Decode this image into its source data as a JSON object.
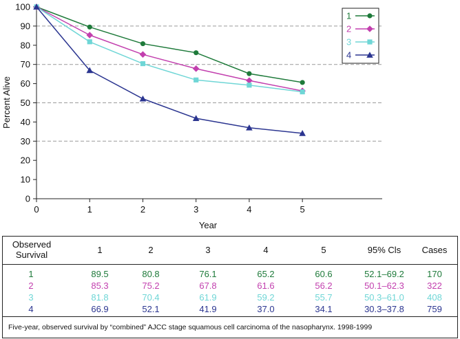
{
  "chart_data": {
    "type": "line",
    "title": "",
    "xlabel": "Year",
    "ylabel": "Percent Alive",
    "xlim": [
      0,
      6.5
    ],
    "ylim": [
      0,
      100
    ],
    "x_ticks": [
      "0",
      "1",
      "2",
      "3",
      "4",
      "5"
    ],
    "y_ticks": [
      "0",
      "10",
      "20",
      "30",
      "40",
      "50",
      "60",
      "70",
      "80",
      "90",
      "100"
    ],
    "gridlines": [
      30,
      50,
      70,
      90
    ],
    "series": [
      {
        "name": "1",
        "color": "#1e7a3a",
        "marker": "circle",
        "x": [
          0,
          1,
          2,
          3,
          4,
          5
        ],
        "values": [
          100,
          89.5,
          80.8,
          76.1,
          65.2,
          60.6
        ]
      },
      {
        "name": "2",
        "color": "#c23fae",
        "marker": "diamond",
        "x": [
          0,
          1,
          2,
          3,
          4,
          5
        ],
        "values": [
          100,
          85.3,
          75.2,
          67.8,
          61.6,
          56.2
        ]
      },
      {
        "name": "3",
        "color": "#6fd6d6",
        "marker": "square",
        "x": [
          0,
          1,
          2,
          3,
          4,
          5
        ],
        "values": [
          100,
          81.8,
          70.4,
          61.9,
          59.2,
          55.7
        ]
      },
      {
        "name": "4",
        "color": "#2b3590",
        "marker": "triangle",
        "x": [
          0,
          1,
          2,
          3,
          4,
          5
        ],
        "values": [
          100,
          66.9,
          52.1,
          41.9,
          37.0,
          34.1
        ]
      }
    ],
    "legend": "top-right"
  },
  "table": {
    "header": {
      "observed": "Observed",
      "survival": "Survival",
      "cols": [
        "1",
        "2",
        "3",
        "4",
        "5"
      ],
      "ci": "95% Cls",
      "cases": "Cases"
    },
    "rows": [
      {
        "label": "1",
        "color": "#1e7a3a",
        "values": [
          "89.5",
          "80.8",
          "76.1",
          "65.2",
          "60.6"
        ],
        "ci": "52.1–69.2",
        "cases": "170"
      },
      {
        "label": "2",
        "color": "#c23fae",
        "values": [
          "85.3",
          "75.2",
          "67.8",
          "61.6",
          "56.2"
        ],
        "ci": "50.1–62.3",
        "cases": "322"
      },
      {
        "label": "3",
        "color": "#6fd6d6",
        "values": [
          "81.8",
          "70.4",
          "61.9",
          "59.2",
          "55.7"
        ],
        "ci": "50.3–61.0",
        "cases": "408"
      },
      {
        "label": "4",
        "color": "#2b3590",
        "values": [
          "66.9",
          "52.1",
          "41.9",
          "37.0",
          "34.1"
        ],
        "ci": "30.3–37.8",
        "cases": "759"
      }
    ]
  },
  "caption": "Five-year, observed survival by “combined” AJCC stage squamous cell carcinoma of the nasopharynx. 1998-1999"
}
